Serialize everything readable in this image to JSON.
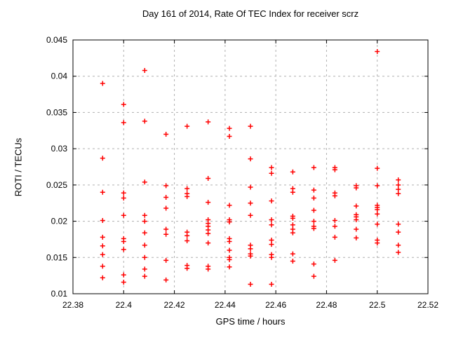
{
  "chart_data": {
    "type": "scatter",
    "title": "Day 161 of 2014, Rate Of TEC Index for receiver scrz",
    "xlabel": "GPS time / hours",
    "ylabel": "ROTI / TECUs",
    "xlim": [
      22.38,
      22.52
    ],
    "ylim": [
      0.01,
      0.045
    ],
    "grid": true,
    "legend_position": "none",
    "marker": {
      "shape": "plus",
      "color": "#ff0000"
    },
    "grid_color": "#b0b0b0",
    "axis_color": "#000000",
    "xticks": [
      {
        "v": 22.38,
        "label": "22.38"
      },
      {
        "v": 22.4,
        "label": "22.4"
      },
      {
        "v": 22.42,
        "label": "22.42"
      },
      {
        "v": 22.44,
        "label": "22.44"
      },
      {
        "v": 22.46,
        "label": "22.46"
      },
      {
        "v": 22.48,
        "label": "22.48"
      },
      {
        "v": 22.5,
        "label": "22.5"
      },
      {
        "v": 22.52,
        "label": "22.52"
      }
    ],
    "yticks": [
      {
        "v": 0.01,
        "label": "0.01"
      },
      {
        "v": 0.015,
        "label": "0.015"
      },
      {
        "v": 0.02,
        "label": "0.02"
      },
      {
        "v": 0.025,
        "label": "0.025"
      },
      {
        "v": 0.03,
        "label": "0.03"
      },
      {
        "v": 0.035,
        "label": "0.035"
      },
      {
        "v": 0.04,
        "label": "0.04"
      },
      {
        "v": 0.045,
        "label": "0.045"
      }
    ],
    "points": [
      [
        22.3917,
        0.039
      ],
      [
        22.3917,
        0.0287
      ],
      [
        22.3917,
        0.024
      ],
      [
        22.3917,
        0.0201
      ],
      [
        22.3917,
        0.0178
      ],
      [
        22.3917,
        0.0166
      ],
      [
        22.3917,
        0.0154
      ],
      [
        22.3917,
        0.0138
      ],
      [
        22.3917,
        0.0122
      ],
      [
        22.4,
        0.0361
      ],
      [
        22.4,
        0.0336
      ],
      [
        22.4,
        0.0239
      ],
      [
        22.4,
        0.0232
      ],
      [
        22.4,
        0.0208
      ],
      [
        22.4,
        0.0176
      ],
      [
        22.4,
        0.0172
      ],
      [
        22.4,
        0.0161
      ],
      [
        22.4,
        0.0126
      ],
      [
        22.4,
        0.0116
      ],
      [
        22.4083,
        0.0408
      ],
      [
        22.4083,
        0.0338
      ],
      [
        22.4083,
        0.0254
      ],
      [
        22.4083,
        0.0208
      ],
      [
        22.4083,
        0.02
      ],
      [
        22.4083,
        0.0184
      ],
      [
        22.4083,
        0.0167
      ],
      [
        22.4083,
        0.015
      ],
      [
        22.4083,
        0.0134
      ],
      [
        22.4083,
        0.0124
      ],
      [
        22.4167,
        0.032
      ],
      [
        22.4167,
        0.0249
      ],
      [
        22.4167,
        0.0233
      ],
      [
        22.4167,
        0.0218
      ],
      [
        22.4167,
        0.0189
      ],
      [
        22.4167,
        0.0182
      ],
      [
        22.4167,
        0.0146
      ],
      [
        22.4167,
        0.0119
      ],
      [
        22.425,
        0.0331
      ],
      [
        22.425,
        0.0245
      ],
      [
        22.425,
        0.0238
      ],
      [
        22.425,
        0.0234
      ],
      [
        22.425,
        0.0185
      ],
      [
        22.425,
        0.018
      ],
      [
        22.425,
        0.0173
      ],
      [
        22.425,
        0.0139
      ],
      [
        22.425,
        0.0135
      ],
      [
        22.4333,
        0.0337
      ],
      [
        22.4333,
        0.0259
      ],
      [
        22.4333,
        0.0226
      ],
      [
        22.4333,
        0.0202
      ],
      [
        22.4333,
        0.0197
      ],
      [
        22.4333,
        0.0193
      ],
      [
        22.4333,
        0.0188
      ],
      [
        22.4333,
        0.0183
      ],
      [
        22.4333,
        0.017
      ],
      [
        22.4333,
        0.0138
      ],
      [
        22.4333,
        0.0134
      ],
      [
        22.4417,
        0.0328
      ],
      [
        22.4417,
        0.0317
      ],
      [
        22.4417,
        0.0222
      ],
      [
        22.4417,
        0.0202
      ],
      [
        22.4417,
        0.0199
      ],
      [
        22.4417,
        0.0176
      ],
      [
        22.4417,
        0.0172
      ],
      [
        22.4417,
        0.016
      ],
      [
        22.4417,
        0.015
      ],
      [
        22.4417,
        0.0147
      ],
      [
        22.4417,
        0.0137
      ],
      [
        22.45,
        0.0331
      ],
      [
        22.45,
        0.0286
      ],
      [
        22.45,
        0.0247
      ],
      [
        22.45,
        0.0225
      ],
      [
        22.45,
        0.0208
      ],
      [
        22.45,
        0.0167
      ],
      [
        22.45,
        0.0162
      ],
      [
        22.45,
        0.0155
      ],
      [
        22.45,
        0.0152
      ],
      [
        22.45,
        0.0113
      ],
      [
        22.4583,
        0.0274
      ],
      [
        22.4583,
        0.0266
      ],
      [
        22.4583,
        0.0228
      ],
      [
        22.4583,
        0.0202
      ],
      [
        22.4583,
        0.0195
      ],
      [
        22.4583,
        0.0174
      ],
      [
        22.4583,
        0.0168
      ],
      [
        22.4583,
        0.0154
      ],
      [
        22.4583,
        0.015
      ],
      [
        22.4583,
        0.0113
      ],
      [
        22.4667,
        0.0268
      ],
      [
        22.4667,
        0.0245
      ],
      [
        22.4667,
        0.024
      ],
      [
        22.4667,
        0.0207
      ],
      [
        22.4667,
        0.0204
      ],
      [
        22.4667,
        0.0195
      ],
      [
        22.4667,
        0.0189
      ],
      [
        22.4667,
        0.0184
      ],
      [
        22.4667,
        0.0155
      ],
      [
        22.4667,
        0.0145
      ],
      [
        22.475,
        0.0274
      ],
      [
        22.475,
        0.0243
      ],
      [
        22.475,
        0.0232
      ],
      [
        22.475,
        0.0215
      ],
      [
        22.475,
        0.02
      ],
      [
        22.475,
        0.0193
      ],
      [
        22.475,
        0.019
      ],
      [
        22.475,
        0.0141
      ],
      [
        22.475,
        0.0124
      ],
      [
        22.4833,
        0.0274
      ],
      [
        22.4833,
        0.0271
      ],
      [
        22.4833,
        0.0239
      ],
      [
        22.4833,
        0.0235
      ],
      [
        22.4833,
        0.0201
      ],
      [
        22.4833,
        0.0193
      ],
      [
        22.4833,
        0.0178
      ],
      [
        22.4833,
        0.0146
      ],
      [
        22.4917,
        0.0249
      ],
      [
        22.4917,
        0.0246
      ],
      [
        22.4917,
        0.0221
      ],
      [
        22.4917,
        0.0209
      ],
      [
        22.4917,
        0.0206
      ],
      [
        22.4917,
        0.0202
      ],
      [
        22.4917,
        0.0189
      ],
      [
        22.4917,
        0.0177
      ],
      [
        22.5,
        0.0434
      ],
      [
        22.5,
        0.0273
      ],
      [
        22.5,
        0.0249
      ],
      [
        22.5,
        0.0222
      ],
      [
        22.5,
        0.0219
      ],
      [
        22.5,
        0.0216
      ],
      [
        22.5,
        0.021
      ],
      [
        22.5,
        0.0196
      ],
      [
        22.5,
        0.0174
      ],
      [
        22.5,
        0.017
      ],
      [
        22.5083,
        0.0257
      ],
      [
        22.5083,
        0.025
      ],
      [
        22.5083,
        0.0244
      ],
      [
        22.5083,
        0.0238
      ],
      [
        22.5083,
        0.0196
      ],
      [
        22.5083,
        0.0185
      ],
      [
        22.5083,
        0.0167
      ],
      [
        22.5083,
        0.0157
      ]
    ]
  }
}
